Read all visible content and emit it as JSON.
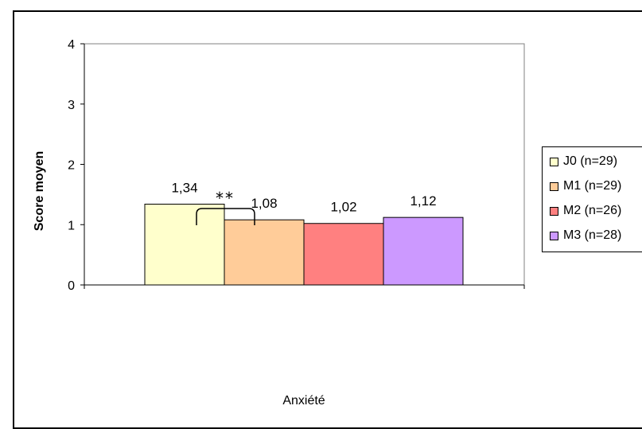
{
  "chart_data": {
    "type": "bar",
    "title": "",
    "xlabel": "",
    "ylabel": "Score moyen",
    "categories": [
      "Anxiété"
    ],
    "ylim": [
      0,
      4
    ],
    "yticks": [
      "0",
      "1",
      "2",
      "3",
      "4"
    ],
    "grid": false,
    "legend_position": "right",
    "series": [
      {
        "name": "J0 (n=29)",
        "values": [
          1.34
        ],
        "label": "1,34",
        "color": "#ffffcc"
      },
      {
        "name": "M1 (n=29)",
        "values": [
          1.08
        ],
        "label": "1,08",
        "color": "#ffcc99"
      },
      {
        "name": "M2 (n=26)",
        "values": [
          1.02
        ],
        "label": "1,02",
        "color": "#ff8080"
      },
      {
        "name": "M3 (n=28)",
        "values": [
          1.12
        ],
        "label": "1,12",
        "color": "#cc99ff"
      }
    ],
    "annotation": {
      "text": "**",
      "between": [
        "J0 (n=29)",
        "M1 (n=29)"
      ]
    }
  }
}
